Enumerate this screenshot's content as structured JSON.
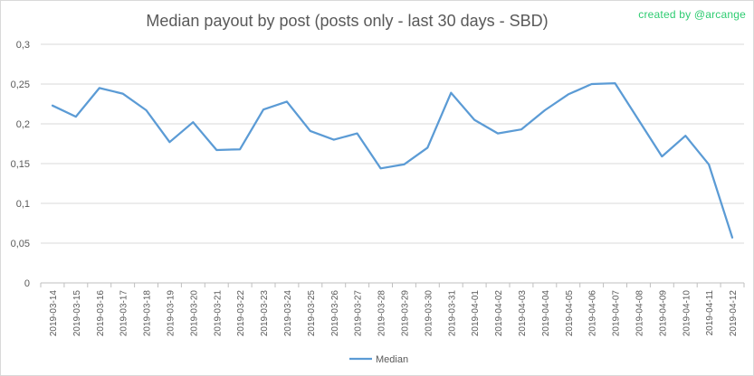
{
  "chart_data": {
    "type": "line",
    "title": "Median payout by post (posts only - last 30 days - SBD)",
    "credit": "created by @arcange",
    "xlabel": "",
    "ylabel": "",
    "ylim": [
      0,
      0.3
    ],
    "yticks": [
      "0",
      "0,05",
      "0,1",
      "0,15",
      "0,2",
      "0,25",
      "0,3"
    ],
    "grid": true,
    "legend_position": "bottom",
    "color": "#5b9bd5",
    "categories": [
      "2019-03-14",
      "2019-03-15",
      "2019-03-16",
      "2019-03-17",
      "2019-03-18",
      "2019-03-19",
      "2019-03-20",
      "2019-03-21",
      "2019-03-22",
      "2019-03-23",
      "2019-03-24",
      "2019-03-25",
      "2019-03-26",
      "2019-03-27",
      "2019-03-28",
      "2019-03-29",
      "2019-03-30",
      "2019-03-31",
      "2019-04-01",
      "2019-04-02",
      "2019-04-03",
      "2019-04-04",
      "2019-04-05",
      "2019-04-06",
      "2019-04-07",
      "2019-04-08",
      "2019-04-09",
      "2019-04-10",
      "2019-04-11",
      "2019-04-12"
    ],
    "series": [
      {
        "name": "Median",
        "values": [
          0.223,
          0.209,
          0.245,
          0.238,
          0.217,
          0.177,
          0.202,
          0.167,
          0.168,
          0.218,
          0.228,
          0.191,
          0.18,
          0.188,
          0.144,
          0.149,
          0.17,
          0.239,
          0.205,
          0.188,
          0.193,
          0.217,
          0.237,
          0.25,
          0.251,
          0.205,
          0.159,
          0.185,
          0.149,
          0.057
        ]
      }
    ]
  }
}
